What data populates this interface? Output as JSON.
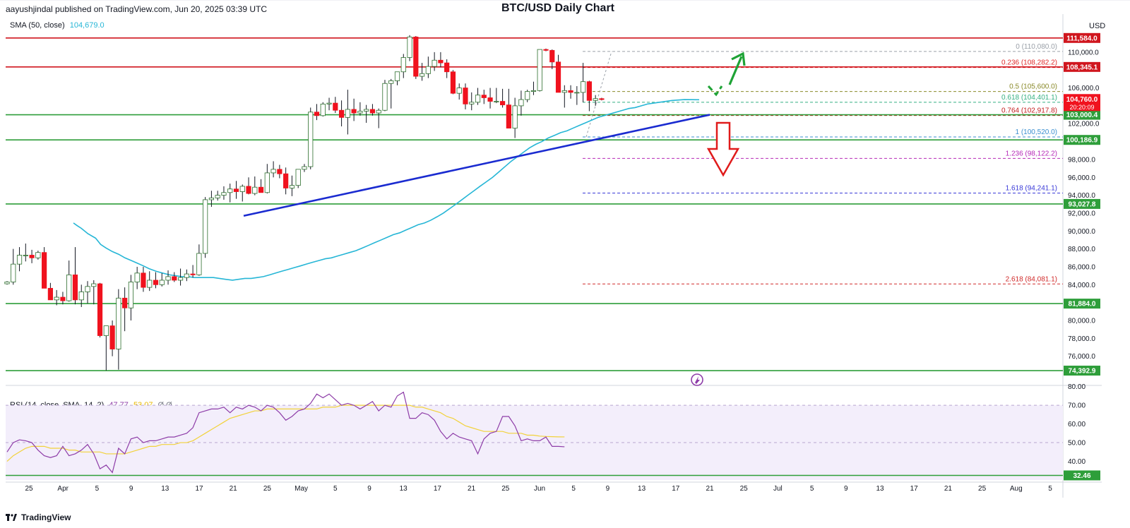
{
  "header": {
    "publisher": "aayushjindal published on TradingView.com, Jun 20, 2025 03:39 UTC",
    "title": "BTC/USD Daily Chart",
    "currency": "USD",
    "footer_brand": "TradingView"
  },
  "sma_legend": {
    "label": "SMA (50, close)",
    "value": "104,679.0"
  },
  "rsi_legend": {
    "label": "RSI (14, close, SMA, 14, 2)",
    "rsi": "47.77",
    "sma": "53.07",
    "extra": "Ø Ø"
  },
  "colors": {
    "up": "#ffffff",
    "down": "#f0121e",
    "sma": "#26b6d6",
    "support": "#2e9e3a",
    "resistance": "#d0161e",
    "trend": "#1a2bd0",
    "rsi": "#8e3da8",
    "rsi_sma": "#f2d23a"
  },
  "chart_data": {
    "type": "candlestick",
    "x_tick_labels": [
      "25",
      "Apr",
      "5",
      "9",
      "13",
      "17",
      "21",
      "25",
      "May",
      "5",
      "9",
      "13",
      "17",
      "21",
      "25",
      "Jun",
      "5",
      "9",
      "13",
      "17",
      "21",
      "25",
      "Jul",
      "5",
      "9",
      "13",
      "17",
      "21",
      "25",
      "Aug",
      "5"
    ],
    "y_ticks": [
      76000,
      78000,
      80000,
      82000,
      84000,
      86000,
      88000,
      90000,
      92000,
      94000,
      96000,
      98000,
      100000,
      102000,
      104000,
      106000,
      110000
    ],
    "y_tick_labels": [
      "76,000.0",
      "78,000.0",
      "80,000.0",
      "82,000.0",
      "84,000.0",
      "86,000.0",
      "88,000.0",
      "90,000.0",
      "92,000.0",
      "94,000.0",
      "96,000.0",
      "98,000.0",
      "100,000.0",
      "102,000.0",
      "104,000.0",
      "106,000.0",
      "110,000.0"
    ],
    "ylim": [
      74000,
      112200
    ],
    "candles": [
      [
        84100,
        84400,
        84000,
        84300
      ],
      [
        84300,
        88000,
        84000,
        86300
      ],
      [
        86300,
        88200,
        85500,
        87300
      ],
      [
        87300,
        88600,
        86600,
        87300
      ],
      [
        87300,
        87900,
        86400,
        87000
      ],
      [
        87000,
        87800,
        86800,
        87600
      ],
      [
        87600,
        88200,
        83600,
        83600
      ],
      [
        83600,
        84200,
        82300,
        82300
      ],
      [
        82300,
        83400,
        81700,
        82600
      ],
      [
        82600,
        83200,
        81800,
        82200
      ],
      [
        82200,
        86700,
        82100,
        85100
      ],
      [
        85100,
        88200,
        81800,
        82300
      ],
      [
        82300,
        84000,
        81500,
        83200
      ],
      [
        83200,
        84400,
        81900,
        83800
      ],
      [
        83800,
        84500,
        81800,
        84100
      ],
      [
        84100,
        84200,
        78100,
        78300
      ],
      [
        78300,
        79300,
        74400,
        79400
      ],
      [
        79400,
        80000,
        76000,
        76800
      ],
      [
        76800,
        83500,
        74500,
        82500
      ],
      [
        82500,
        83700,
        78800,
        81400
      ],
      [
        81400,
        85100,
        80000,
        84300
      ],
      [
        84300,
        86000,
        83500,
        85300
      ],
      [
        85300,
        86000,
        83200,
        83700
      ],
      [
        83700,
        85500,
        83300,
        84500
      ],
      [
        84500,
        85400,
        83600,
        84000
      ],
      [
        84000,
        85300,
        83800,
        84500
      ],
      [
        84500,
        85600,
        84000,
        84900
      ],
      [
        84900,
        85400,
        84300,
        84500
      ],
      [
        84500,
        85800,
        83900,
        84800
      ],
      [
        84800,
        85700,
        84400,
        85200
      ],
      [
        85200,
        86200,
        84800,
        85100
      ],
      [
        85100,
        88500,
        85000,
        87500
      ],
      [
        87500,
        93800,
        87000,
        93500
      ],
      [
        93500,
        94500,
        92700,
        93700
      ],
      [
        93700,
        94500,
        93400,
        94000
      ],
      [
        94000,
        95000,
        93500,
        94300
      ],
      [
        94300,
        95300,
        93200,
        94700
      ],
      [
        94700,
        95600,
        93600,
        94400
      ],
      [
        94400,
        95200,
        93300,
        95000
      ],
      [
        95000,
        96000,
        94100,
        94200
      ],
      [
        94200,
        96100,
        94000,
        94900
      ],
      [
        94900,
        95800,
        94300,
        94300
      ],
      [
        94300,
        97500,
        94200,
        96500
      ],
      [
        96500,
        97800,
        96000,
        96900
      ],
      [
        96900,
        97400,
        95900,
        96400
      ],
      [
        96400,
        97100,
        94100,
        94800
      ],
      [
        94800,
        96200,
        93900,
        95100
      ],
      [
        95100,
        96700,
        94800,
        96900
      ],
      [
        96900,
        97500,
        96600,
        97200
      ],
      [
        97200,
        103800,
        96900,
        103300
      ],
      [
        103300,
        104200,
        102400,
        102900
      ],
      [
        102900,
        104400,
        102800,
        104200
      ],
      [
        104200,
        104900,
        103500,
        104300
      ],
      [
        104300,
        105000,
        103200,
        103500
      ],
      [
        103500,
        104600,
        101700,
        102700
      ],
      [
        102700,
        105800,
        100800,
        103600
      ],
      [
        103600,
        104800,
        102300,
        103200
      ],
      [
        103200,
        104400,
        102900,
        103400
      ],
      [
        103400,
        104100,
        102100,
        103600
      ],
      [
        103600,
        104200,
        102900,
        103200
      ],
      [
        103200,
        103700,
        101500,
        103500
      ],
      [
        103500,
        106900,
        103400,
        106500
      ],
      [
        106500,
        107000,
        103700,
        106800
      ],
      [
        106800,
        107700,
        106300,
        107800
      ],
      [
        107800,
        109800,
        107100,
        109400
      ],
      [
        109400,
        111900,
        109000,
        111700
      ],
      [
        111700,
        111800,
        107000,
        107300
      ],
      [
        107300,
        108800,
        106800,
        107600
      ],
      [
        107600,
        109500,
        107100,
        108400
      ],
      [
        108400,
        110000,
        107900,
        109100
      ],
      [
        109100,
        110000,
        108300,
        108800
      ],
      [
        108800,
        109200,
        107100,
        107800
      ],
      [
        107800,
        108000,
        105300,
        105400
      ],
      [
        105400,
        106500,
        104700,
        106000
      ],
      [
        106000,
        106500,
        103600,
        104200
      ],
      [
        104200,
        105500,
        103500,
        104400
      ],
      [
        104400,
        106000,
        104100,
        105200
      ],
      [
        105200,
        105800,
        104200,
        104900
      ],
      [
        104900,
        106000,
        103700,
        104500
      ],
      [
        104500,
        106000,
        104300,
        104500
      ],
      [
        104500,
        105900,
        103800,
        104100
      ],
      [
        104100,
        105900,
        101600,
        101500
      ],
      [
        101500,
        104900,
        100400,
        104000
      ],
      [
        104000,
        105700,
        102900,
        104700
      ],
      [
        104700,
        105800,
        104400,
        105600
      ],
      [
        105600,
        106700,
        105200,
        105700
      ],
      [
        105700,
        110200,
        105600,
        110300
      ],
      [
        110300,
        110400,
        110100,
        110200
      ],
      [
        110200,
        110300,
        108100,
        108900
      ],
      [
        108900,
        109700,
        105500,
        105500
      ],
      [
        105500,
        106300,
        103800,
        105700
      ],
      [
        105700,
        106300,
        104800,
        105500
      ],
      [
        105500,
        106200,
        104100,
        105500
      ],
      [
        105500,
        108800,
        104400,
        106700
      ],
      [
        106700,
        106800,
        103400,
        104600
      ],
      [
        104600,
        105200,
        104000,
        104800
      ],
      [
        104800,
        104900,
        104600,
        104700
      ]
    ],
    "sma50": [
      [
        104.0,
        90900
      ],
      [
        109.3,
        90600
      ],
      [
        115.2,
        90300
      ],
      [
        124.5,
        89700
      ],
      [
        135.4,
        89200
      ],
      [
        142.5,
        88500
      ],
      [
        150.1,
        88100
      ],
      [
        159.1,
        87700
      ],
      [
        168.0,
        87400
      ],
      [
        176.9,
        87000
      ],
      [
        186.0,
        86700
      ],
      [
        194.5,
        86400
      ],
      [
        203.1,
        86100
      ],
      [
        210.8,
        85800
      ],
      [
        221.0,
        85500
      ],
      [
        230.0,
        85300
      ],
      [
        240.2,
        85100
      ],
      [
        249.4,
        85000
      ],
      [
        257.5,
        84900
      ],
      [
        266.2,
        84900
      ],
      [
        275.2,
        84800
      ],
      [
        283.9,
        84800
      ],
      [
        292.5,
        84800
      ],
      [
        302.2,
        84800
      ],
      [
        310.7,
        84700
      ],
      [
        319.3,
        84600
      ],
      [
        329.2,
        84500
      ],
      [
        337.8,
        84600
      ],
      [
        346.7,
        84700
      ],
      [
        355.6,
        84700
      ],
      [
        364.2,
        84800
      ],
      [
        372.9,
        84900
      ],
      [
        381.8,
        85100
      ],
      [
        390.0,
        85300
      ],
      [
        398.8,
        85500
      ],
      [
        407.8,
        85700
      ],
      [
        416.3,
        85900
      ],
      [
        425.4,
        86100
      ],
      [
        433.8,
        86300
      ],
      [
        442.4,
        86500
      ],
      [
        451.5,
        86700
      ],
      [
        460.6,
        86900
      ],
      [
        469.2,
        87000
      ],
      [
        477.7,
        87200
      ],
      [
        486.4,
        87400
      ],
      [
        495.1,
        87600
      ],
      [
        504.0,
        87800
      ],
      [
        513.0,
        88100
      ],
      [
        521.9,
        88400
      ],
      [
        530.5,
        88700
      ],
      [
        539.6,
        89000
      ],
      [
        548.4,
        89300
      ],
      [
        557.0,
        89600
      ],
      [
        566.0,
        89800
      ],
      [
        574.5,
        90100
      ],
      [
        583.3,
        90400
      ],
      [
        592.0,
        90700
      ],
      [
        601.0,
        90900
      ],
      [
        609.8,
        91200
      ],
      [
        619.0,
        91600
      ],
      [
        627.7,
        92000
      ],
      [
        636.6,
        92500
      ],
      [
        645.5,
        93000
      ],
      [
        654.0,
        93500
      ],
      [
        662.4,
        94000
      ],
      [
        671.1,
        94500
      ],
      [
        679.6,
        95000
      ],
      [
        688.5,
        95500
      ],
      [
        697.4,
        96000
      ],
      [
        706.3,
        96600
      ],
      [
        715.0,
        97200
      ],
      [
        723.8,
        97800
      ],
      [
        732.5,
        98300
      ],
      [
        741.1,
        98800
      ],
      [
        749.8,
        99300
      ],
      [
        758.7,
        99700
      ],
      [
        767.2,
        100000
      ],
      [
        776.2,
        100400
      ],
      [
        785.2,
        100700
      ],
      [
        793.9,
        101000
      ],
      [
        802.7,
        101200
      ],
      [
        811.3,
        101500
      ],
      [
        820.1,
        101800
      ],
      [
        829.0,
        102100
      ],
      [
        838.0,
        102400
      ],
      [
        846.6,
        102700
      ],
      [
        855.1,
        102900
      ],
      [
        864.1,
        103100
      ],
      [
        872.9,
        103300
      ],
      [
        881.6,
        103500
      ],
      [
        890.3,
        103700
      ],
      [
        899.2,
        103800
      ],
      [
        908.1,
        104000
      ],
      [
        916.7,
        104200
      ],
      [
        925.6,
        104300
      ],
      [
        934.3,
        104400
      ],
      [
        943.1,
        104500
      ],
      [
        951.8,
        104600
      ],
      [
        960.6,
        104650
      ],
      [
        969.3,
        104700
      ],
      [
        990.0,
        104679
      ]
    ],
    "horizontal_levels": [
      {
        "value": 111584,
        "label": "111,584.0",
        "kind": "resistance"
      },
      {
        "value": 108345.1,
        "label": "108,345.1",
        "kind": "resistance"
      },
      {
        "value": 103000.4,
        "label": "103,000.4",
        "kind": "support"
      },
      {
        "value": 100186.9,
        "label": "100,186.9",
        "kind": "support"
      },
      {
        "value": 93027.8,
        "label": "93,027.8",
        "kind": "support"
      },
      {
        "value": 81884,
        "label": "81,884.0",
        "kind": "support"
      },
      {
        "value": 74392.9,
        "label": "74,392.9",
        "kind": "support"
      }
    ],
    "price_badges": [
      {
        "value": 104760,
        "label": "104,760.0",
        "sub": "20:20:09",
        "color": "#f0121e"
      }
    ],
    "fib_levels": [
      {
        "ratio": "0",
        "price": "110,080.0",
        "value": 110080,
        "color": "#9aa0a8"
      },
      {
        "ratio": "0.236",
        "price": "108,282.2",
        "value": 108282.2,
        "color": "#e02a2a"
      },
      {
        "ratio": "0.5",
        "price": "105,600.0",
        "value": 105600,
        "color": "#8a8a2a"
      },
      {
        "ratio": "0.618",
        "price": "104,401.1",
        "value": 104401.1,
        "color": "#35b082"
      },
      {
        "ratio": "0.764",
        "price": "102,917.8",
        "value": 102917.8,
        "color": "#c32020"
      },
      {
        "ratio": "1",
        "price": "100,520.0",
        "value": 100520,
        "color": "#3b8fd0"
      },
      {
        "ratio": "1.236",
        "price": "98,122.2",
        "value": 98122.2,
        "color": "#b52ab8"
      },
      {
        "ratio": "1.618",
        "price": "94,241.1",
        "value": 94241.1,
        "color": "#3a3ad8"
      },
      {
        "ratio": "2.618",
        "price": "84,081.1",
        "value": 84081.1,
        "color": "#d02a2a"
      }
    ],
    "trendline": {
      "start": [
        345,
        91700
      ],
      "end": [
        1005,
        103000
      ]
    },
    "rsi": {
      "ylim": [
        30,
        81
      ],
      "y_ticks": [
        40,
        50,
        60,
        70,
        80
      ],
      "y_tick_labels": [
        "40.00",
        "50.00",
        "60.00",
        "70.00",
        "80.00"
      ],
      "level_line": {
        "value": 32.46,
        "label": "32.46"
      },
      "band": [
        30,
        70
      ],
      "rsi_values": [
        45,
        50,
        51.5,
        51,
        50,
        46,
        43,
        42,
        43,
        48,
        43,
        44,
        46,
        49,
        44,
        36,
        38,
        34,
        47,
        44,
        52,
        53,
        50,
        51,
        51,
        52,
        53,
        53,
        54,
        55,
        58,
        66,
        67,
        68,
        68,
        69,
        66,
        69,
        68,
        70,
        69,
        67,
        70,
        69,
        66,
        62,
        64,
        67,
        68,
        71,
        76,
        74,
        76,
        73,
        70,
        71,
        70,
        68,
        70,
        72,
        67,
        70,
        69,
        75,
        77,
        63,
        63,
        66,
        65,
        62,
        56,
        52,
        55,
        53,
        52,
        51,
        44,
        52,
        55,
        56,
        64,
        64,
        59,
        51,
        52,
        51,
        51,
        53,
        48,
        48,
        47.77
      ],
      "sma_values": [
        40,
        43,
        45,
        47,
        48,
        48,
        48,
        47,
        47,
        47,
        46,
        46,
        45,
        45,
        45,
        45,
        44,
        44,
        44,
        44,
        45,
        46,
        47,
        48,
        48,
        49,
        49,
        49,
        50,
        50,
        51,
        53,
        55,
        57,
        59,
        61,
        63,
        64,
        65,
        66,
        67,
        67,
        68,
        68,
        68,
        68,
        68,
        68,
        68,
        68,
        68,
        69,
        69,
        69,
        70,
        70,
        70,
        70,
        70,
        70,
        70,
        70,
        70,
        70,
        70,
        70,
        69,
        69,
        68,
        67,
        66,
        64,
        63,
        61,
        59,
        58,
        57,
        56,
        56,
        56,
        56,
        55,
        55,
        55,
        54,
        54,
        53.5,
        53.3,
        53.2,
        53.1,
        53.07
      ]
    }
  }
}
